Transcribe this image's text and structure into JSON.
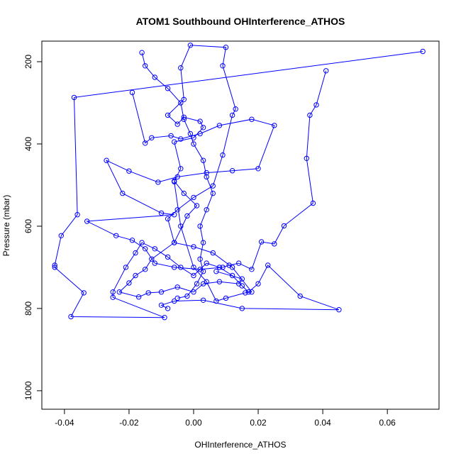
{
  "chart_data": {
    "type": "line",
    "title": "ATOM1 Southbound OHInterference_ATHOS",
    "xlabel": "OHInterference_ATHOS",
    "ylabel": "Pressure (mbar)",
    "xlim": [
      -0.047,
      0.076
    ],
    "ylim": [
      1045,
      150
    ],
    "y_inverted": true,
    "x_ticks": [
      -0.04,
      -0.02,
      0.0,
      0.02,
      0.04,
      0.06
    ],
    "x_tick_labels": [
      "-0.04",
      "-0.02",
      "0.00",
      "0.02",
      "0.04",
      "0.06"
    ],
    "y_ticks": [
      200,
      400,
      600,
      800,
      1000
    ],
    "y_tick_labels": [
      "200",
      "400",
      "600",
      "800",
      "1000"
    ],
    "grid": false,
    "series_color": "#0000ff",
    "marker": "open-circle",
    "series": [
      {
        "values": [
          [
            0.071,
            175
          ],
          [
            -0.037,
            287
          ],
          [
            -0.036,
            572
          ],
          [
            -0.041,
            623
          ],
          [
            -0.043,
            695
          ],
          [
            -0.043,
            700
          ],
          [
            -0.034,
            762
          ],
          [
            -0.038,
            820
          ],
          [
            -0.009,
            822
          ],
          [
            -0.025,
            773
          ],
          [
            -0.025,
            760
          ],
          [
            -0.021,
            700
          ],
          [
            -0.018,
            665
          ],
          [
            -0.016,
            640
          ],
          [
            -0.012,
            655
          ],
          [
            -0.008,
            675
          ],
          [
            -0.004,
            700
          ],
          [
            0.0,
            720
          ],
          [
            0.004,
            690
          ],
          [
            0.008,
            700
          ],
          [
            0.012,
            720
          ],
          [
            0.015,
            745
          ],
          [
            0.017,
            760
          ],
          [
            0.02,
            740
          ],
          [
            0.023,
            695
          ],
          [
            0.033,
            770
          ],
          [
            0.045,
            803
          ],
          [
            0.015,
            800
          ],
          [
            0.003,
            780
          ],
          [
            -0.006,
            782
          ],
          [
            -0.01,
            792
          ],
          [
            -0.008,
            800
          ]
        ]
      },
      {
        "values": [
          [
            -0.016,
            178
          ],
          [
            -0.015,
            210
          ],
          [
            -0.012,
            238
          ],
          [
            -0.008,
            265
          ],
          [
            -0.004,
            300
          ],
          [
            -0.003,
            340
          ],
          [
            -0.001,
            375
          ],
          [
            0.0,
            400
          ],
          [
            0.003,
            440
          ],
          [
            0.004,
            480
          ],
          [
            0.006,
            520
          ],
          [
            0.004,
            560
          ],
          [
            0.002,
            600
          ],
          [
            0.003,
            640
          ],
          [
            0.002,
            680
          ],
          [
            0.003,
            710
          ],
          [
            0.001,
            740
          ],
          [
            -0.002,
            770
          ],
          [
            -0.005,
            775
          ]
        ]
      },
      {
        "values": [
          [
            -0.019,
            275
          ],
          [
            -0.015,
            398
          ],
          [
            -0.013,
            385
          ],
          [
            -0.007,
            380
          ],
          [
            -0.004,
            388
          ],
          [
            0.002,
            375
          ],
          [
            0.008,
            355
          ],
          [
            0.018,
            340
          ],
          [
            0.025,
            355
          ],
          [
            0.02,
            460
          ],
          [
            0.012,
            465
          ],
          [
            0.004,
            470
          ],
          [
            -0.005,
            480
          ],
          [
            -0.011,
            493
          ],
          [
            -0.02,
            466
          ],
          [
            -0.027,
            440
          ],
          [
            -0.022,
            520
          ],
          [
            -0.01,
            568
          ],
          [
            -0.006,
            572
          ],
          [
            -0.033,
            588
          ],
          [
            -0.024,
            623
          ],
          [
            -0.019,
            634
          ],
          [
            -0.015,
            655
          ],
          [
            -0.012,
            690
          ],
          [
            -0.006,
            700
          ],
          [
            0.002,
            705
          ],
          [
            0.009,
            700
          ],
          [
            0.011,
            695
          ],
          [
            0.014,
            690
          ],
          [
            0.018,
            705
          ],
          [
            0.021,
            638
          ],
          [
            0.025,
            643
          ],
          [
            0.028,
            599
          ],
          [
            0.037,
            544
          ],
          [
            0.035,
            435
          ],
          [
            0.036,
            330
          ],
          [
            0.038,
            305
          ],
          [
            0.041,
            222
          ]
        ]
      },
      {
        "values": [
          [
            -0.006,
            492
          ],
          [
            -0.004,
            600
          ],
          [
            0.0,
            700
          ],
          [
            0.004,
            735
          ],
          [
            0.007,
            782
          ],
          [
            0.01,
            775
          ],
          [
            0.016,
            762
          ],
          [
            0.018,
            760
          ],
          [
            0.012,
            700
          ],
          [
            0.006,
            665
          ],
          [
            0.0,
            650
          ],
          [
            -0.006,
            640
          ],
          [
            -0.008,
            582
          ],
          [
            -0.005,
            560
          ],
          [
            0.0,
            530
          ],
          [
            0.006,
            502
          ],
          [
            0.009,
            427
          ],
          [
            0.012,
            330
          ],
          [
            0.013,
            315
          ],
          [
            0.009,
            210
          ],
          [
            0.01,
            165
          ],
          [
            -0.001,
            160
          ],
          [
            -0.004,
            215
          ],
          [
            -0.003,
            292
          ],
          [
            -0.008,
            330
          ],
          [
            -0.005,
            352
          ],
          [
            -0.003,
            335
          ],
          [
            0.002,
            345
          ],
          [
            0.003,
            360
          ],
          [
            0.0,
            385
          ],
          [
            -0.006,
            395
          ],
          [
            -0.004,
            460
          ],
          [
            -0.006,
            490
          ],
          [
            -0.003,
            520
          ],
          [
            0.001,
            550
          ],
          [
            -0.002,
            575
          ],
          [
            -0.006,
            640
          ],
          [
            -0.013,
            680
          ],
          [
            -0.015,
            705
          ],
          [
            -0.018,
            720
          ],
          [
            -0.02,
            738
          ],
          [
            -0.023,
            760
          ],
          [
            -0.017,
            772
          ],
          [
            -0.014,
            762
          ],
          [
            -0.01,
            760
          ],
          [
            -0.005,
            748
          ],
          [
            0.0,
            760
          ],
          [
            0.003,
            740
          ],
          [
            0.008,
            735
          ],
          [
            0.014,
            740
          ],
          [
            0.015,
            728
          ],
          [
            0.007,
            710
          ]
        ]
      }
    ]
  }
}
